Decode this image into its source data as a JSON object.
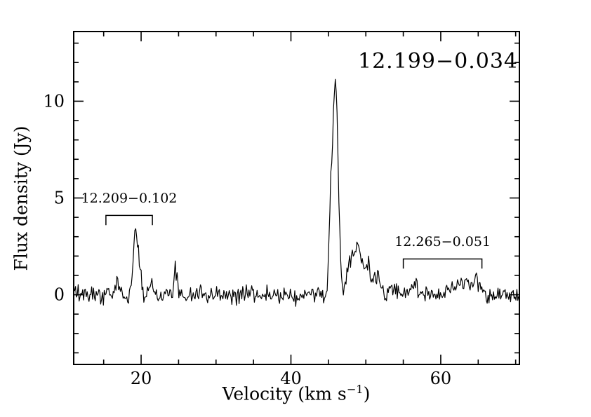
{
  "figure": {
    "background": "#ffffff",
    "line_color": "#000000"
  },
  "chart_data": {
    "type": "line",
    "title": "12.199−0.034",
    "ylabel": "Flux density (Jy)",
    "xlabel": {
      "pre": "Velocity (km s",
      "sup": "−1",
      "post": ")"
    },
    "xlim": [
      11,
      70.5
    ],
    "ylim": [
      -3.6,
      13.6
    ],
    "x_major_ticks": [
      20,
      40,
      60
    ],
    "x_minor_step": 5,
    "y_major_ticks": [
      0,
      5,
      10
    ],
    "y_minor_step": 1,
    "grid": false,
    "legend": false,
    "series_name": "maser-spectrum",
    "baseline_flux": 0,
    "peaks": [
      {
        "v": 16.8,
        "flux": 0.9,
        "width": 0.22
      },
      {
        "v": 19.3,
        "flux": 3.25,
        "width": 0.3
      },
      {
        "v": 19.9,
        "flux": 0.8,
        "width": 0.2
      },
      {
        "v": 21.3,
        "flux": 0.85,
        "width": 0.22
      },
      {
        "v": 24.6,
        "flux": 1.25,
        "width": 0.22
      },
      {
        "v": 45.3,
        "flux": 4.0,
        "width": 0.22
      },
      {
        "v": 45.95,
        "flux": 11.2,
        "width": 0.35
      },
      {
        "v": 47.9,
        "flux": 1.7,
        "width": 0.45
      },
      {
        "v": 49.0,
        "flux": 2.4,
        "width": 0.5
      },
      {
        "v": 50.3,
        "flux": 1.5,
        "width": 0.4
      },
      {
        "v": 51.6,
        "flux": 0.9,
        "width": 0.35
      },
      {
        "v": 53.6,
        "flux": 0.5,
        "width": 0.4
      },
      {
        "v": 56.5,
        "flux": 0.5,
        "width": 0.35
      },
      {
        "v": 62.5,
        "flux": 0.55,
        "width": 0.9
      },
      {
        "v": 64.3,
        "flux": 0.7,
        "width": 0.8
      }
    ],
    "noise": {
      "rms": 0.22,
      "seed": 12
    },
    "sample_step": 0.12,
    "features": [
      {
        "label": "12.209−0.102",
        "v_start": 15.3,
        "v_end": 21.5,
        "bracket_flux": 4.1,
        "cap_drop": 0.5,
        "label_flux": 4.6
      },
      {
        "label": "12.265−0.051",
        "v_start": 55.0,
        "v_end": 65.5,
        "bracket_flux": 1.85,
        "cap_drop": 0.5,
        "label_flux": 2.35
      }
    ]
  }
}
